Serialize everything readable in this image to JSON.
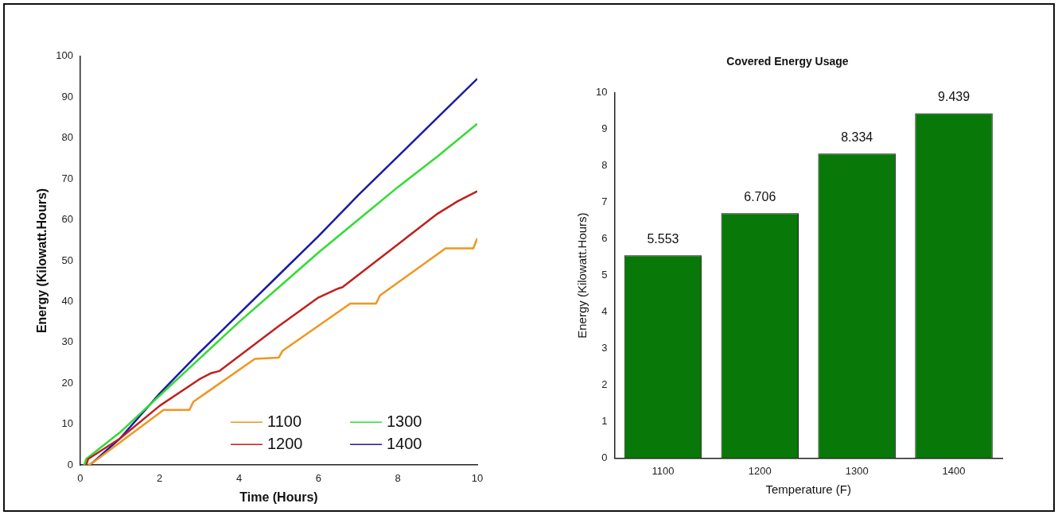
{
  "chart_data": [
    {
      "type": "line",
      "xlabel": "Time (Hours)",
      "ylabel": "Energy (Kilowatt.Hours)",
      "xlim": [
        0,
        10
      ],
      "xticks": [
        0,
        2,
        4,
        6,
        8,
        10
      ],
      "ylim": [
        0,
        100
      ],
      "yticks": [
        0,
        10,
        20,
        30,
        40,
        50,
        60,
        70,
        80,
        90,
        100
      ],
      "grid": false,
      "legend": "bottom right",
      "line_style": "solid",
      "series": [
        {
          "name": "1100",
          "color": "#f0961e",
          "x": [
            0.2,
            0.3,
            2.1,
            2.75,
            2.85,
            4.4,
            5.0,
            5.1,
            6.8,
            7.45,
            7.55,
            9.2,
            9.9,
            10
          ],
          "values": [
            0,
            0.5,
            13.5,
            13.5,
            15.5,
            26,
            26.3,
            28,
            39.5,
            39.5,
            41.5,
            53,
            53,
            55.5
          ]
        },
        {
          "name": "1200",
          "color": "#c0201e",
          "x": [
            0.15,
            0.2,
            1,
            2,
            3,
            3.3,
            3.5,
            5,
            6,
            6.5,
            6.6,
            8,
            9,
            9.5,
            10
          ],
          "values": [
            0,
            1.5,
            6.5,
            14.5,
            21,
            22.5,
            23,
            34,
            41,
            43.2,
            43.5,
            54,
            61.5,
            64.5,
            67
          ]
        },
        {
          "name": "1300",
          "color": "#32dc32",
          "x": [
            0.1,
            0.15,
            1,
            2,
            3,
            4,
            5,
            6,
            7,
            8,
            9,
            10
          ],
          "values": [
            0,
            1.5,
            8,
            17,
            26,
            35,
            43.5,
            52,
            60,
            68,
            75.5,
            83.5
          ]
        },
        {
          "name": "1400",
          "color": "#1a1aa8",
          "x": [
            0.25,
            0.3,
            1,
            2,
            3,
            4,
            5,
            6,
            7,
            8,
            9,
            10
          ],
          "values": [
            0,
            0.5,
            6.5,
            17.5,
            27.5,
            37,
            46.5,
            56,
            66,
            75.5,
            85,
            94.5
          ]
        }
      ]
    },
    {
      "type": "bar",
      "title": "Covered Energy Usage",
      "xlabel": "Temperature (F)",
      "ylabel": "Energy (Kilowatt.Hours)",
      "categories": [
        "1100",
        "1200",
        "1300",
        "1400"
      ],
      "values": [
        5.553,
        6.706,
        8.334,
        9.439
      ],
      "color": "#087808",
      "ylim": [
        0,
        10
      ],
      "yticks": [
        0,
        1,
        2,
        3,
        4,
        5,
        6,
        7,
        8,
        9,
        10
      ],
      "grid": false,
      "legend": false,
      "data_labels": true
    }
  ]
}
